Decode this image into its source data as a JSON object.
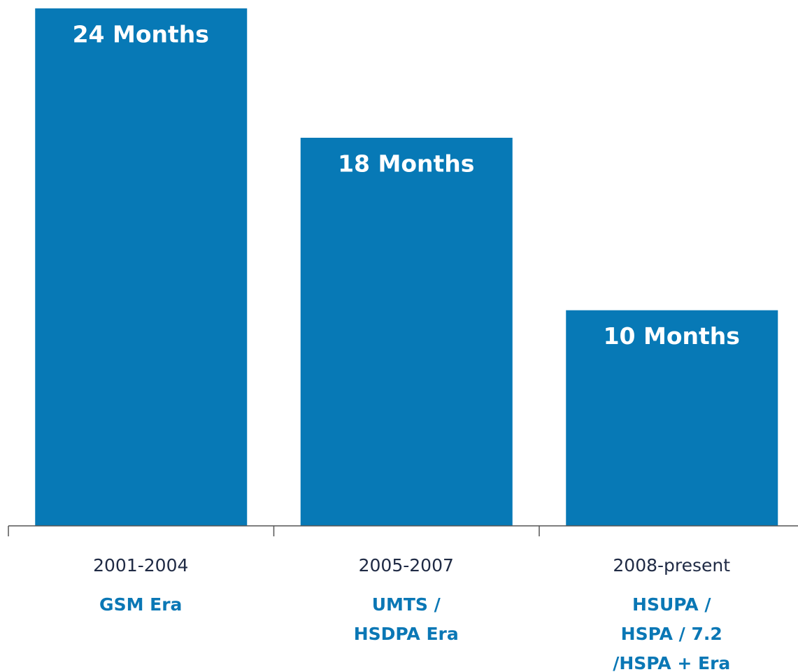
{
  "chart_data": {
    "type": "bar",
    "categories": [
      "2001-2004",
      "2005-2007",
      "2008-present"
    ],
    "era_labels": [
      [
        "GSM Era"
      ],
      [
        "UMTS /",
        "HSDPA Era"
      ],
      [
        "HSUPA /",
        "HSPA / 7.2",
        "/HSPA + Era"
      ]
    ],
    "values": [
      24,
      18,
      10
    ],
    "value_labels": [
      "24 Months",
      "18 Months",
      "10 Months"
    ],
    "color": "#0779b6",
    "ylim": [
      0,
      24
    ],
    "grid": false
  }
}
